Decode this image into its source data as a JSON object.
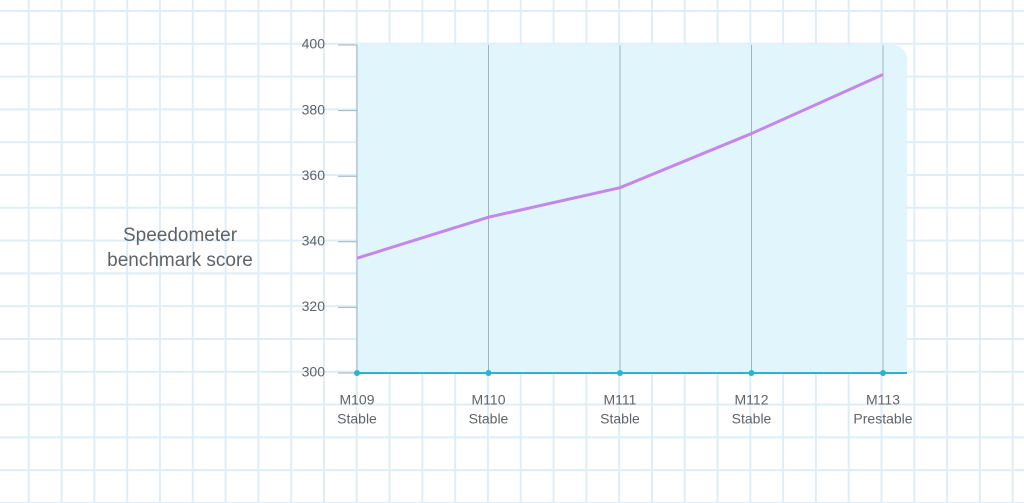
{
  "chart_data": {
    "type": "line",
    "y_label": [
      "Speedometer",
      "benchmark score"
    ],
    "categories": [
      [
        "M109",
        "Stable"
      ],
      [
        "M110",
        "Stable"
      ],
      [
        "M111",
        "Stable"
      ],
      [
        "M112",
        "Stable"
      ],
      [
        "M113",
        "Prestable"
      ]
    ],
    "values": [
      335,
      347.5,
      356.5,
      373,
      391
    ],
    "color": "#c587ea",
    "ylim": [
      300,
      400
    ],
    "yticks": [
      300,
      320,
      340,
      360,
      380,
      400
    ]
  }
}
